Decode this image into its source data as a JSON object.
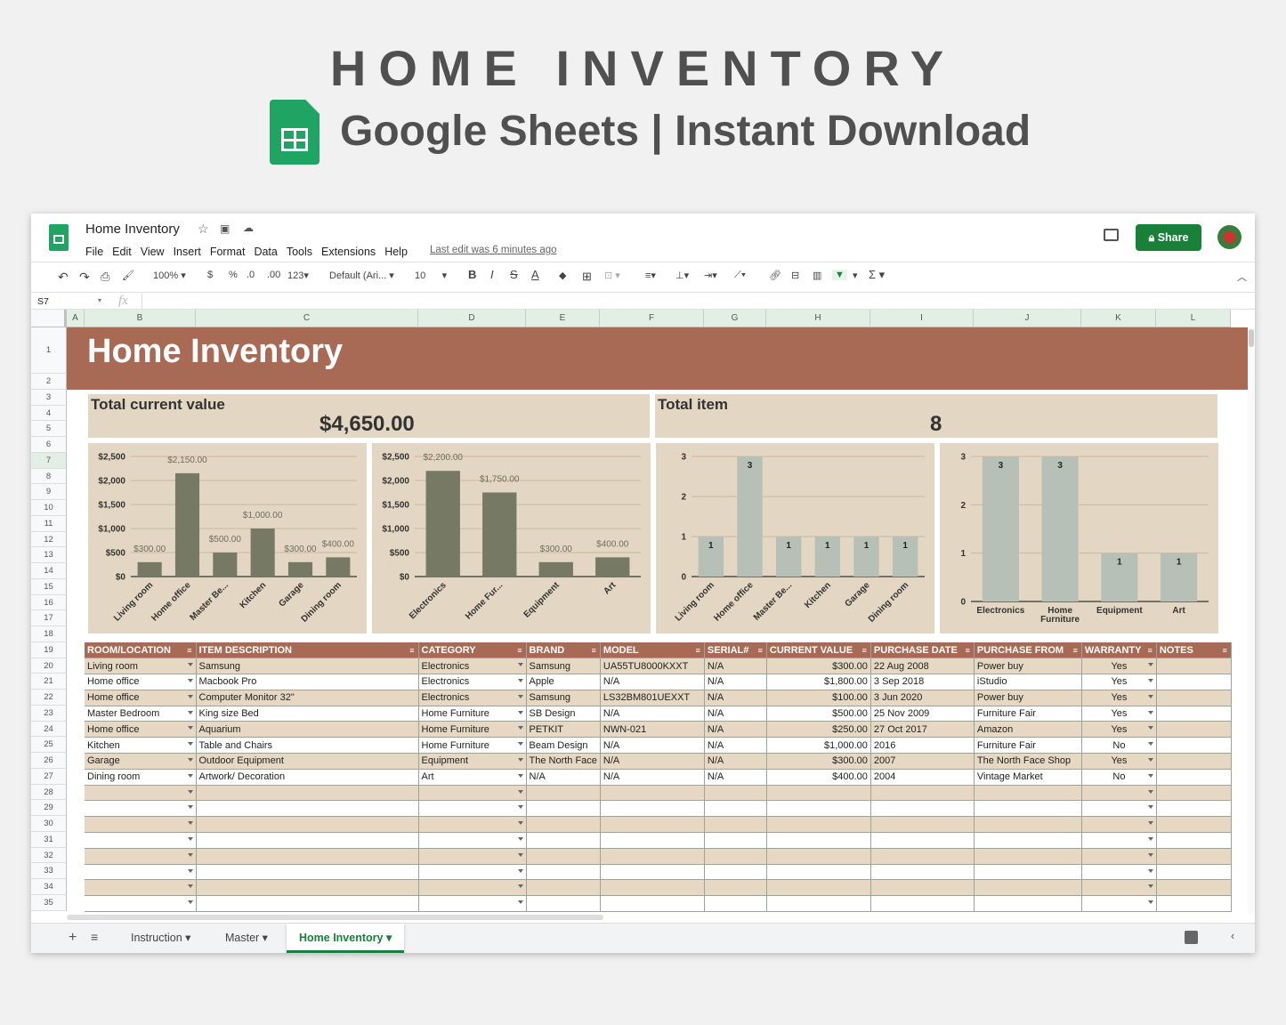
{
  "hero": {
    "title": "HOME INVENTORY",
    "subtitle": "Google Sheets | Instant Download"
  },
  "app": {
    "doc_title": "Home Inventory",
    "menu": [
      "File",
      "Edit",
      "View",
      "Insert",
      "Format",
      "Data",
      "Tools",
      "Extensions",
      "Help"
    ],
    "last_edit": "Last edit was 6 minutes ago",
    "share_label": "Share",
    "zoom": "100%",
    "currency": "$",
    "percent": "%",
    "dec_less": ".0",
    "dec_more": ".00",
    "num_format": "123",
    "font": "Default (Ari...",
    "font_size": "10",
    "bold": "B",
    "italic": "I",
    "strike": "S",
    "text_color": "A",
    "cell_ref": "S7",
    "fx": "fx"
  },
  "columns": [
    "A",
    "B",
    "C",
    "D",
    "E",
    "F",
    "G",
    "H",
    "I",
    "J",
    "K",
    "L"
  ],
  "row_numbers": [
    "1",
    "2",
    "3",
    "4",
    "5",
    "6",
    "7",
    "8",
    "9",
    "10",
    "11",
    "12",
    "13",
    "14",
    "15",
    "16",
    "17",
    "18",
    "19",
    "20",
    "21",
    "22",
    "23",
    "24",
    "25",
    "26",
    "27",
    "28",
    "29",
    "30",
    "31",
    "32",
    "33",
    "34",
    "35"
  ],
  "sheet": {
    "title": "Home Inventory",
    "total_value_label": "Total current value",
    "total_value": "$4,650.00",
    "total_item_label": "Total item",
    "total_item": "8"
  },
  "chart_data": [
    {
      "type": "bar",
      "categories": [
        "Living room",
        "Home office",
        "Master Be...",
        "Kitchen",
        "Garage",
        "Dining room"
      ],
      "values": [
        300,
        2150,
        500,
        1000,
        300,
        400
      ],
      "data_labels": [
        "$300.00",
        "$2,150.00",
        "$500.00",
        "$1,000.00",
        "$300.00",
        "$400.00"
      ],
      "ylim": [
        0,
        2500
      ],
      "yticks": [
        "$0",
        "$500",
        "$1,000",
        "$1,500",
        "$2,000",
        "$2,500"
      ],
      "color": "#767a64"
    },
    {
      "type": "bar",
      "categories": [
        "Electronics",
        "Home Fur...",
        "Equipment",
        "Art"
      ],
      "values": [
        2200,
        1750,
        300,
        400
      ],
      "data_labels": [
        "$2,200.00",
        "$1,750.00",
        "$300.00",
        "$400.00"
      ],
      "ylim": [
        0,
        2500
      ],
      "yticks": [
        "$0",
        "$500",
        "$1,000",
        "$1,500",
        "$2,000",
        "$2,500"
      ],
      "color": "#767a64"
    },
    {
      "type": "bar",
      "categories": [
        "Living room",
        "Home office",
        "Master Be...",
        "Kitchen",
        "Garage",
        "Dining room"
      ],
      "values": [
        1,
        3,
        1,
        1,
        1,
        1
      ],
      "data_labels": [
        "1",
        "3",
        "1",
        "1",
        "1",
        "1"
      ],
      "ylim": [
        0,
        3
      ],
      "yticks": [
        "0",
        "1",
        "2",
        "3"
      ],
      "color": "#b6c0b6"
    },
    {
      "type": "bar",
      "categories": [
        "Electronics",
        "Home Furniture",
        "Equipment",
        "Art"
      ],
      "values": [
        3,
        3,
        1,
        1
      ],
      "data_labels": [
        "3",
        "3",
        "1",
        "1"
      ],
      "ylim": [
        0,
        3
      ],
      "yticks": [
        "0",
        "1",
        "2",
        "3"
      ],
      "color": "#b6c0b6"
    }
  ],
  "table": {
    "headers": [
      "ROOM/LOCATION",
      "ITEM DESCRIPTION",
      "CATEGORY",
      "BRAND",
      "MODEL",
      "SERIAL#",
      "CURRENT VALUE",
      "PURCHASE DATE",
      "PURCHASE FROM",
      "WARRANTY",
      "NOTES"
    ],
    "rows": [
      [
        "Living room",
        "Samsung",
        "Electronics",
        "Samsung",
        "UA55TU8000KXXT",
        "N/A",
        "$300.00",
        "22 Aug 2008",
        "Power buy",
        "Yes",
        ""
      ],
      [
        "Home office",
        "Macbook Pro",
        "Electronics",
        "Apple",
        "N/A",
        "N/A",
        "$1,800.00",
        "3 Sep 2018",
        "iStudio",
        "Yes",
        ""
      ],
      [
        "Home office",
        "Computer Monitor 32\"",
        "Electronics",
        "Samsung",
        "LS32BM801UEXXT",
        "N/A",
        "$100.00",
        "3 Jun 2020",
        "Power buy",
        "Yes",
        ""
      ],
      [
        "Master Bedroom",
        "King size Bed",
        "Home Furniture",
        "SB Design",
        "N/A",
        "N/A",
        "$500.00",
        "25 Nov 2009",
        "Furniture Fair",
        "Yes",
        ""
      ],
      [
        "Home office",
        "Aquarium",
        "Home Furniture",
        "PETKIT",
        "NWN-021",
        "N/A",
        "$250.00",
        "27 Oct 2017",
        "Amazon",
        "Yes",
        ""
      ],
      [
        "Kitchen",
        "Table and Chairs",
        "Home Furniture",
        "Beam Design",
        "N/A",
        "N/A",
        "$1,000.00",
        "2016",
        "Furniture Fair",
        "No",
        ""
      ],
      [
        "Garage",
        "Outdoor Equipment",
        "Equipment",
        "The North Face",
        "N/A",
        "N/A",
        "$300.00",
        "2007",
        "The North Face Shop",
        "Yes",
        ""
      ],
      [
        "Dining room",
        "Artwork/ Decoration",
        "Art",
        "N/A",
        "N/A",
        "N/A",
        "$400.00",
        "2004",
        "Vintage Market",
        "No",
        ""
      ],
      [
        "",
        "",
        "",
        "",
        "",
        "",
        "",
        "",
        "",
        "",
        ""
      ],
      [
        "",
        "",
        "",
        "",
        "",
        "",
        "",
        "",
        "",
        "",
        ""
      ],
      [
        "",
        "",
        "",
        "",
        "",
        "",
        "",
        "",
        "",
        "",
        ""
      ],
      [
        "",
        "",
        "",
        "",
        "",
        "",
        "",
        "",
        "",
        "",
        ""
      ],
      [
        "",
        "",
        "",
        "",
        "",
        "",
        "",
        "",
        "",
        "",
        ""
      ],
      [
        "",
        "",
        "",
        "",
        "",
        "",
        "",
        "",
        "",
        "",
        ""
      ],
      [
        "",
        "",
        "",
        "",
        "",
        "",
        "",
        "",
        "",
        "",
        ""
      ],
      [
        "",
        "",
        "",
        "",
        "",
        "",
        "",
        "",
        "",
        "",
        ""
      ]
    ]
  },
  "tabs": [
    {
      "label": "Instruction"
    },
    {
      "label": "Master"
    },
    {
      "label": "Home Inventory",
      "active": true
    }
  ],
  "colors": {
    "title_bar": "#a86a55",
    "card_bg": "#e3d6c2",
    "accent": "#188038"
  }
}
